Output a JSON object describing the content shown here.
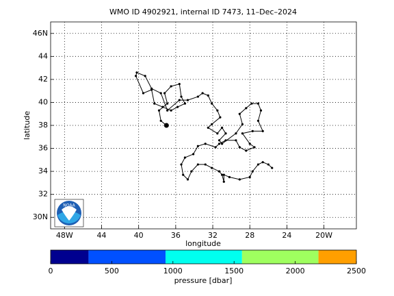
{
  "chart_data": [
    {
      "type": "line",
      "title": "WMO ID 4902921, internal ID 7473, 11–Dec–2024",
      "xlabel": "longitude",
      "ylabel": "latitude",
      "annotations": [
        "NOAA"
      ],
      "xlim": [
        -49.5,
        -16.5
      ],
      "ylim": [
        29,
        47
      ],
      "xticks": [
        {
          "value": -48,
          "label": "48W"
        },
        {
          "value": -44,
          "label": "44"
        },
        {
          "value": -40,
          "label": "40"
        },
        {
          "value": -36,
          "label": "36"
        },
        {
          "value": -32,
          "label": "32"
        },
        {
          "value": -28,
          "label": "28"
        },
        {
          "value": -24,
          "label": "24"
        },
        {
          "value": -20,
          "label": "20W"
        }
      ],
      "yticks": [
        {
          "value": 30,
          "label": "30N"
        },
        32,
        34,
        36,
        38,
        40,
        42,
        44,
        {
          "value": 46,
          "label": "46N"
        }
      ],
      "grid": true,
      "x": [
        -37.0,
        -37.6,
        -37.8,
        -36.9,
        -37.2,
        -36.5,
        -35.6,
        -35.4,
        -35.0,
        -35.8,
        -36.5,
        -37.4,
        -38.3,
        -38.6,
        -39.5,
        -40.3,
        -40.2,
        -39.3,
        -38.6,
        -37.6,
        -36.9,
        -35.6,
        -34.7,
        -33.6,
        -33.1,
        -32.5,
        -32.1,
        -31.5,
        -31.2,
        -32.1,
        -32.5,
        -31.5,
        -31.0,
        -30.6,
        -31.3,
        -31.0,
        -29.5,
        -28.8,
        -29.1,
        -28.4,
        -27.8,
        -27.1,
        -26.8,
        -27.1,
        -26.6,
        -27.7,
        -28.8,
        -28.0,
        -27.5,
        -28.4,
        -29.1,
        -29.5,
        -30.6,
        -31.3,
        -31.7,
        -32.8,
        -33.6,
        -34.1,
        -35.0,
        -35.4,
        -35.2,
        -34.7,
        -34.3,
        -33.6,
        -32.8,
        -32.1,
        -31.3,
        -31.0,
        -30.8,
        -30.8,
        -30.2,
        -29.1,
        -28.0,
        -27.7,
        -27.1,
        -26.6,
        -26.0,
        -25.6
      ],
      "series": [
        {
          "color": "#000000",
          "values": [
            38.0,
            38.4,
            39.3,
            39.9,
            40.8,
            41.4,
            41.6,
            40.5,
            39.9,
            39.6,
            39.3,
            39.6,
            39.9,
            41.1,
            40.8,
            42.3,
            42.6,
            42.3,
            41.2,
            40.8,
            39.3,
            40.2,
            40.2,
            40.5,
            40.8,
            40.6,
            39.9,
            39.3,
            38.7,
            38.1,
            37.8,
            37.3,
            37.8,
            37.3,
            36.7,
            36.4,
            37.3,
            38.1,
            39.0,
            39.5,
            39.9,
            39.9,
            39.3,
            38.4,
            37.5,
            37.5,
            37.3,
            36.4,
            36.1,
            35.8,
            36.1,
            36.7,
            36.7,
            36.4,
            36.1,
            36.4,
            36.2,
            35.5,
            35.2,
            34.6,
            33.7,
            33.3,
            34.0,
            34.6,
            34.6,
            34.3,
            34.0,
            33.7,
            33.1,
            33.7,
            33.5,
            33.3,
            33.5,
            34.0,
            34.6,
            34.8,
            34.6,
            34.3
          ]
        }
      ]
    },
    {
      "type": "colorbar",
      "xlabel": "pressure [dbar]",
      "xlim": [
        0,
        2500
      ],
      "xticks": [
        0,
        500,
        1000,
        1500,
        2000,
        2500
      ],
      "bins": [
        0,
        310,
        940,
        1565,
        2190,
        2500
      ],
      "colors": [
        "#00008f",
        "#0050ff",
        "#00ffef",
        "#9fff5f",
        "#ff9f00"
      ]
    }
  ]
}
